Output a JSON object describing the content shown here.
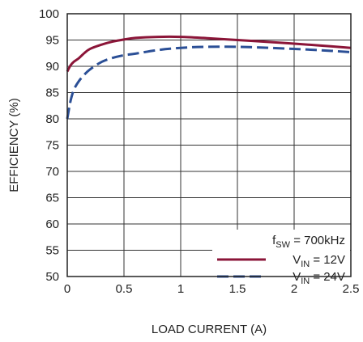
{
  "chart_data": {
    "type": "line",
    "xlabel": "LOAD CURRENT (A)",
    "ylabel": "EFFICIENCY (%)",
    "xlim": [
      0,
      2.5
    ],
    "ylim": [
      50,
      100
    ],
    "x_ticks": [
      0,
      0.5,
      1,
      1.5,
      2,
      2.5
    ],
    "x_tick_labels": [
      "0",
      "0.5",
      "1",
      "1.5",
      "2",
      "2.5"
    ],
    "y_ticks": [
      50,
      55,
      60,
      65,
      70,
      75,
      80,
      85,
      90,
      95,
      100
    ],
    "y_tick_labels": [
      "50",
      "55",
      "60",
      "65",
      "70",
      "75",
      "80",
      "85",
      "90",
      "95",
      "100"
    ],
    "grid": true,
    "legend_placement": "bottom-right",
    "legend_note": {
      "base": "f",
      "sub": "SW",
      "rest": " = 700kHz"
    },
    "series": [
      {
        "name": "VIN = 12V",
        "label_base": "V",
        "label_sub": "IN",
        "label_rest": " = 12V",
        "color": "#8b1538",
        "dash": "solid",
        "x": [
          0,
          0.03,
          0.06,
          0.1,
          0.15,
          0.2,
          0.3,
          0.4,
          0.5,
          0.6,
          0.8,
          1.0,
          1.2,
          1.5,
          1.8,
          2.0,
          2.2,
          2.5
        ],
        "y": [
          89,
          90.2,
          90.9,
          91.5,
          92.5,
          93.3,
          94.1,
          94.7,
          95.1,
          95.4,
          95.6,
          95.6,
          95.4,
          95.0,
          94.6,
          94.3,
          94.0,
          93.5
        ]
      },
      {
        "name": "VIN = 24V",
        "label_base": "V",
        "label_sub": "IN",
        "label_rest": " = 24V",
        "color": "#2b4f96",
        "dash": "dashed",
        "x": [
          0,
          0.03,
          0.06,
          0.1,
          0.15,
          0.2,
          0.3,
          0.4,
          0.5,
          0.6,
          0.8,
          1.0,
          1.2,
          1.5,
          1.8,
          2.0,
          2.2,
          2.5
        ],
        "y": [
          80,
          83.5,
          85.6,
          87.1,
          88.4,
          89.4,
          90.8,
          91.6,
          92.1,
          92.4,
          93.1,
          93.5,
          93.7,
          93.7,
          93.5,
          93.3,
          93.1,
          92.7
        ]
      }
    ]
  }
}
